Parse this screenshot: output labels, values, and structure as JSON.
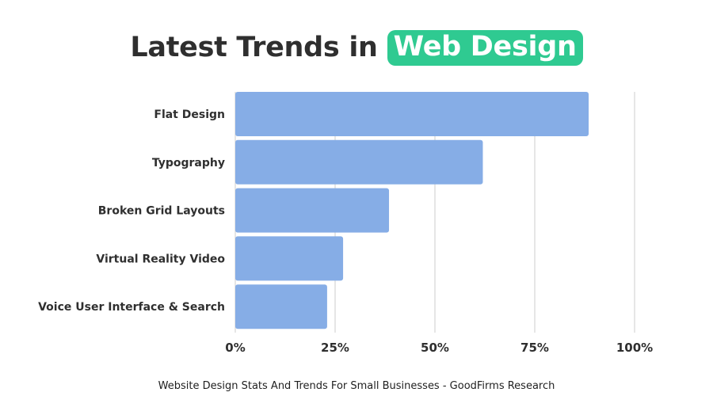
{
  "chart_data": {
    "type": "bar",
    "orientation": "horizontal",
    "title": "Latest Trends in",
    "title_highlight": "Web Design",
    "categories": [
      "Flat Design",
      "Typography",
      "Broken Grid Layouts",
      "Virtual Reality Video",
      "Voice User Interface & Search"
    ],
    "values": [
      88.5,
      62,
      38.5,
      27,
      23
    ],
    "xlim": [
      0,
      100
    ],
    "xticks": [
      0,
      25,
      50,
      75,
      100
    ],
    "xtick_labels": [
      "0%",
      "25%",
      "50%",
      "75%",
      "100%"
    ],
    "xlabel": "",
    "ylabel": "",
    "grid": true,
    "legend": "none",
    "caption": "Website Design Stats And Trends For Small Businesses - GoodFirms Research",
    "colors": {
      "bar": "#86ade6",
      "highlight": "#2fca91",
      "grid": "#d9d9d9",
      "text": "#2f2f2f"
    }
  }
}
